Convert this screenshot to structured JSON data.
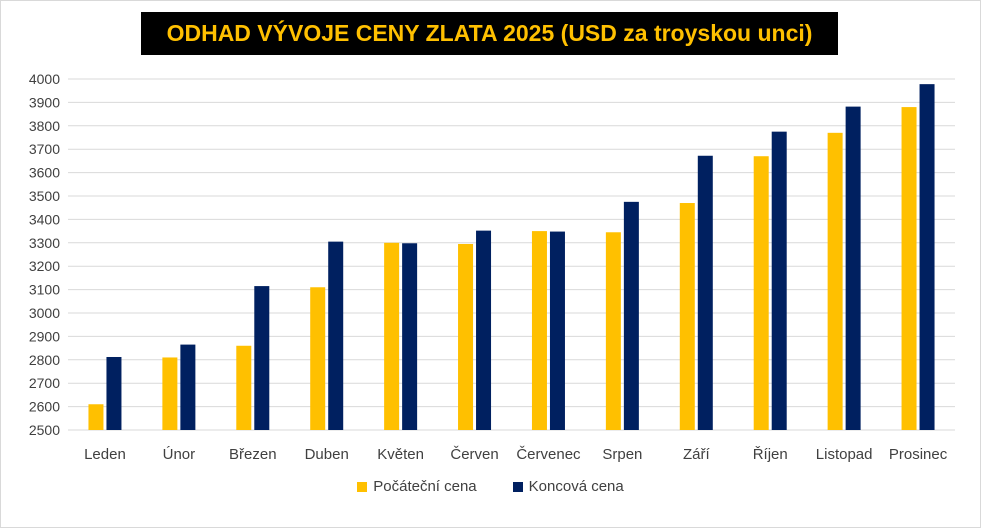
{
  "chart_data": {
    "type": "bar",
    "title": "ODHAD VÝVOJE CENY ZLATA 2025 (USD za troyskou unci)",
    "categories": [
      "Leden",
      "Únor",
      "Březen",
      "Duben",
      "Květen",
      "Červen",
      "Červenec",
      "Srpen",
      "Září",
      "Říjen",
      "Listopad",
      "Prosinec"
    ],
    "series": [
      {
        "name": "Počáteční cena",
        "color": "#ffc000",
        "values": [
          2610,
          2810,
          2860,
          3110,
          3300,
          3295,
          3350,
          3345,
          3470,
          3670,
          3770,
          3880
        ]
      },
      {
        "name": "Koncová cena",
        "color": "#002060",
        "values": [
          2812,
          2865,
          3115,
          3305,
          3298,
          3352,
          3348,
          3475,
          3672,
          3775,
          3882,
          3978
        ]
      }
    ],
    "xlabel": "",
    "ylabel": "",
    "ylim": [
      2500,
      4000
    ],
    "yticks": [
      2500,
      2600,
      2700,
      2800,
      2900,
      3000,
      3100,
      3200,
      3300,
      3400,
      3500,
      3600,
      3700,
      3800,
      3900,
      4000
    ],
    "grid": true,
    "legend_position": "bottom"
  }
}
